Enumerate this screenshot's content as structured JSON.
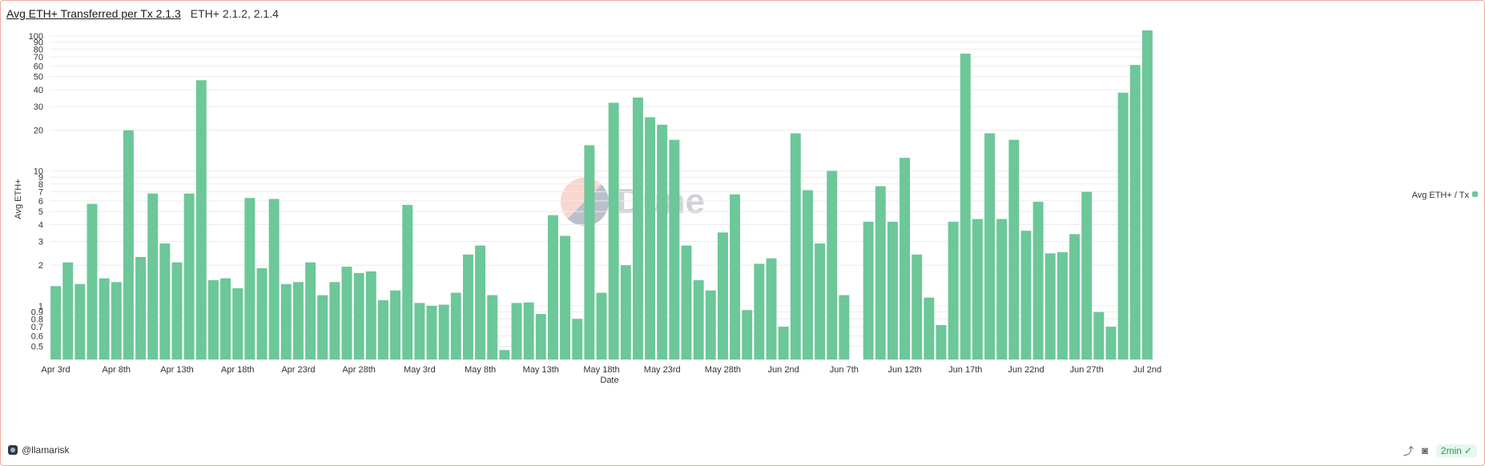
{
  "header": {
    "title": "Avg ETH+ Transferred per Tx 2.1.3",
    "subtitle": "ETH+ 2.1.2, 2.1.4"
  },
  "watermark": "Dune",
  "footer": {
    "user": "@llamarisk",
    "refresh_label": "2min"
  },
  "colors": {
    "bar": "#6cc799",
    "grid": "#ececec",
    "axis_text": "#333333"
  },
  "chart_data": {
    "type": "bar",
    "title": "",
    "xlabel": "Date",
    "ylabel": "Avg ETH+",
    "yscale": "log",
    "ylim": [
      0.4,
      110
    ],
    "grid": true,
    "legend_position": "right",
    "yticks": [
      0.5,
      0.6,
      0.7,
      0.8,
      0.9,
      1,
      2,
      3,
      4,
      5,
      6,
      7,
      8,
      9,
      10,
      20,
      30,
      40,
      50,
      60,
      70,
      80,
      90,
      100
    ],
    "ytick_labels": [
      "0.5",
      "0.6",
      "0.7",
      "0.8",
      "0.9",
      "1",
      "2",
      "3",
      "4",
      "5",
      "6",
      "7",
      "8",
      "9",
      "10",
      "20",
      "30",
      "40",
      "50",
      "60",
      "70",
      "80",
      "90",
      "100"
    ],
    "xtick_labels": [
      "Apr 3rd",
      "Apr 8th",
      "Apr 13th",
      "Apr 18th",
      "Apr 23rd",
      "Apr 28th",
      "May 3rd",
      "May 8th",
      "May 13th",
      "May 18th",
      "May 23rd",
      "May 28th",
      "Jun 2nd",
      "Jun 7th",
      "Jun 12th",
      "Jun 17th",
      "Jun 22nd",
      "Jun 27th",
      "Jul 2nd"
    ],
    "series": [
      {
        "name": "Avg ETH+ / Tx",
        "x_start": "2024-04-03",
        "values": [
          1.4,
          2.1,
          1.45,
          5.7,
          1.6,
          1.5,
          20,
          2.3,
          6.8,
          2.9,
          2.1,
          6.8,
          47,
          1.55,
          1.6,
          1.35,
          6.3,
          1.9,
          6.2,
          1.45,
          1.5,
          2.1,
          1.2,
          1.5,
          1.95,
          1.75,
          1.8,
          1.1,
          1.3,
          5.6,
          1.05,
          1.0,
          1.02,
          1.25,
          2.4,
          2.8,
          1.2,
          0.47,
          1.05,
          1.06,
          0.87,
          4.7,
          3.3,
          0.8,
          15.5,
          1.25,
          32,
          2.0,
          35,
          25,
          22,
          17,
          2.8,
          1.55,
          1.3,
          3.5,
          6.7,
          0.93,
          2.05,
          2.25,
          0.7,
          19,
          7.2,
          2.9,
          10,
          1.2,
          null,
          4.2,
          7.7,
          4.2,
          12.5,
          2.4,
          1.15,
          0.72,
          4.2,
          74,
          4.4,
          19,
          4.4,
          17,
          3.6,
          5.9,
          2.45,
          2.5,
          3.4,
          7.0,
          0.9,
          0.7,
          38,
          61,
          112
        ]
      }
    ]
  }
}
